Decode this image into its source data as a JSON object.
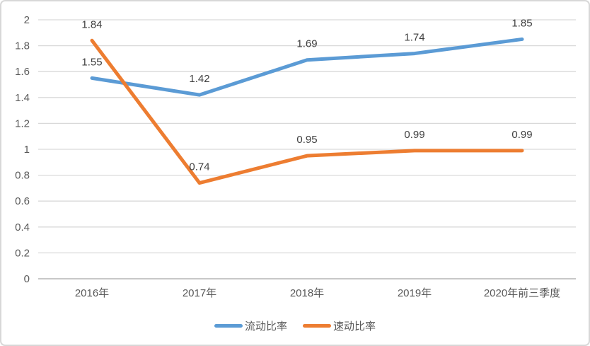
{
  "chart_data": {
    "type": "line",
    "title": "",
    "xlabel": "",
    "ylabel": "",
    "categories": [
      "2016年",
      "2017年",
      "2018年",
      "2019年",
      "2020年前三季度"
    ],
    "series": [
      {
        "name": "流动比率",
        "color": "#5B9BD5",
        "values": [
          1.55,
          1.42,
          1.69,
          1.74,
          1.85
        ]
      },
      {
        "name": "速动比率",
        "color": "#ED7D31",
        "values": [
          1.84,
          0.74,
          0.95,
          0.99,
          0.99
        ]
      }
    ],
    "ylim": [
      0,
      2
    ],
    "ytick_step": 0.2,
    "ytick_labels": [
      "0",
      "0.2",
      "0.4",
      "0.6",
      "0.8",
      "1",
      "1.2",
      "1.4",
      "1.6",
      "1.8",
      "2"
    ],
    "grid": true,
    "legend_position": "bottom",
    "data_labels": true,
    "data_label_decimals": 2
  },
  "theme": {
    "grid_color": "#D9D9D9",
    "axis_line_color": "#C8C8C8",
    "tick_text_color": "#595959",
    "data_label_color": "#404040",
    "frame_border_color": "#D8D8D8",
    "background": "#FFFFFF"
  }
}
